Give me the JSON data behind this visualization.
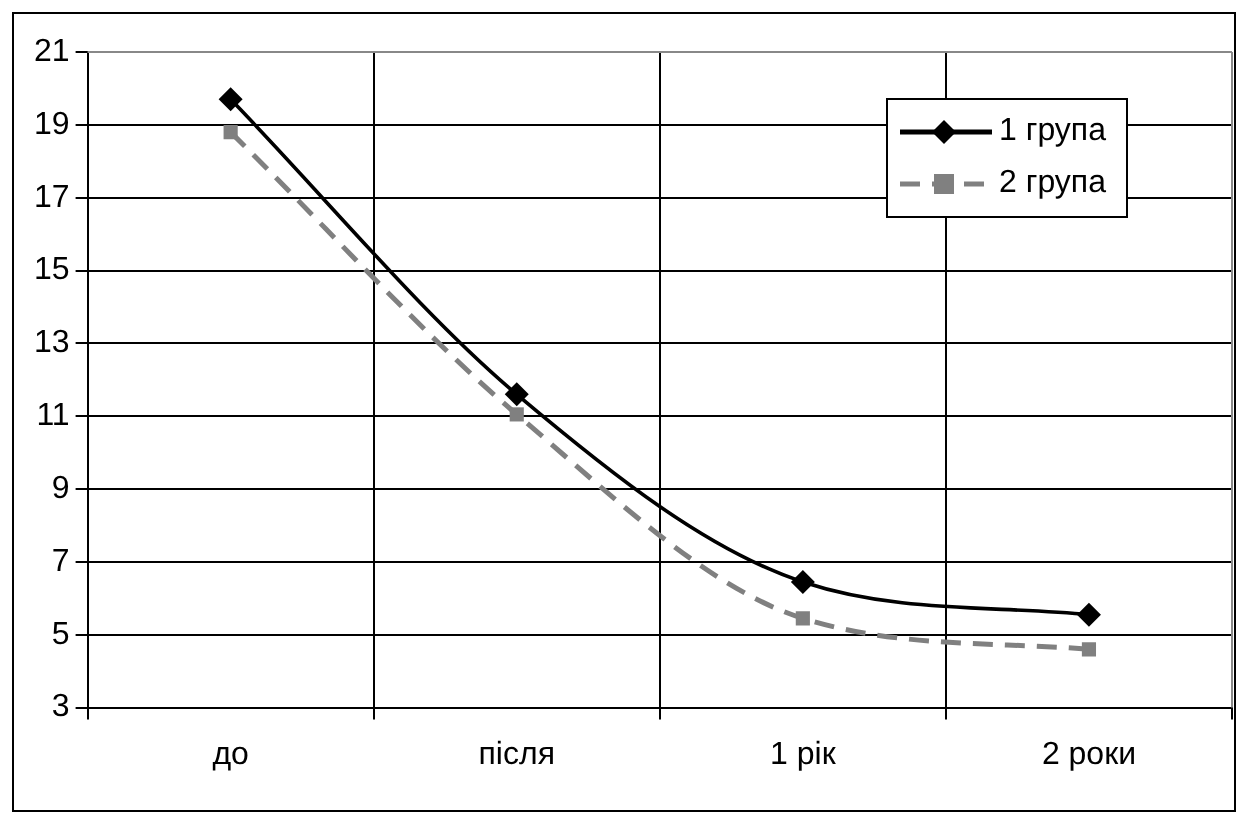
{
  "chart_data": {
    "type": "line",
    "categories": [
      "до",
      "після",
      "1 рік",
      "2 роки"
    ],
    "series": [
      {
        "name": "1 група",
        "color": "#000000",
        "marker": "diamond",
        "line_style": "solid",
        "values": [
          19.7,
          11.6,
          6.45,
          5.55
        ]
      },
      {
        "name": "2 група",
        "color": "#808080",
        "marker": "square",
        "line_style": "dashed",
        "values": [
          18.8,
          11.05,
          5.45,
          4.6
        ]
      }
    ],
    "ylim": [
      3,
      21
    ],
    "yticks": [
      3,
      5,
      7,
      9,
      11,
      13,
      15,
      17,
      19,
      21
    ],
    "grid": true,
    "legend": "top right"
  }
}
